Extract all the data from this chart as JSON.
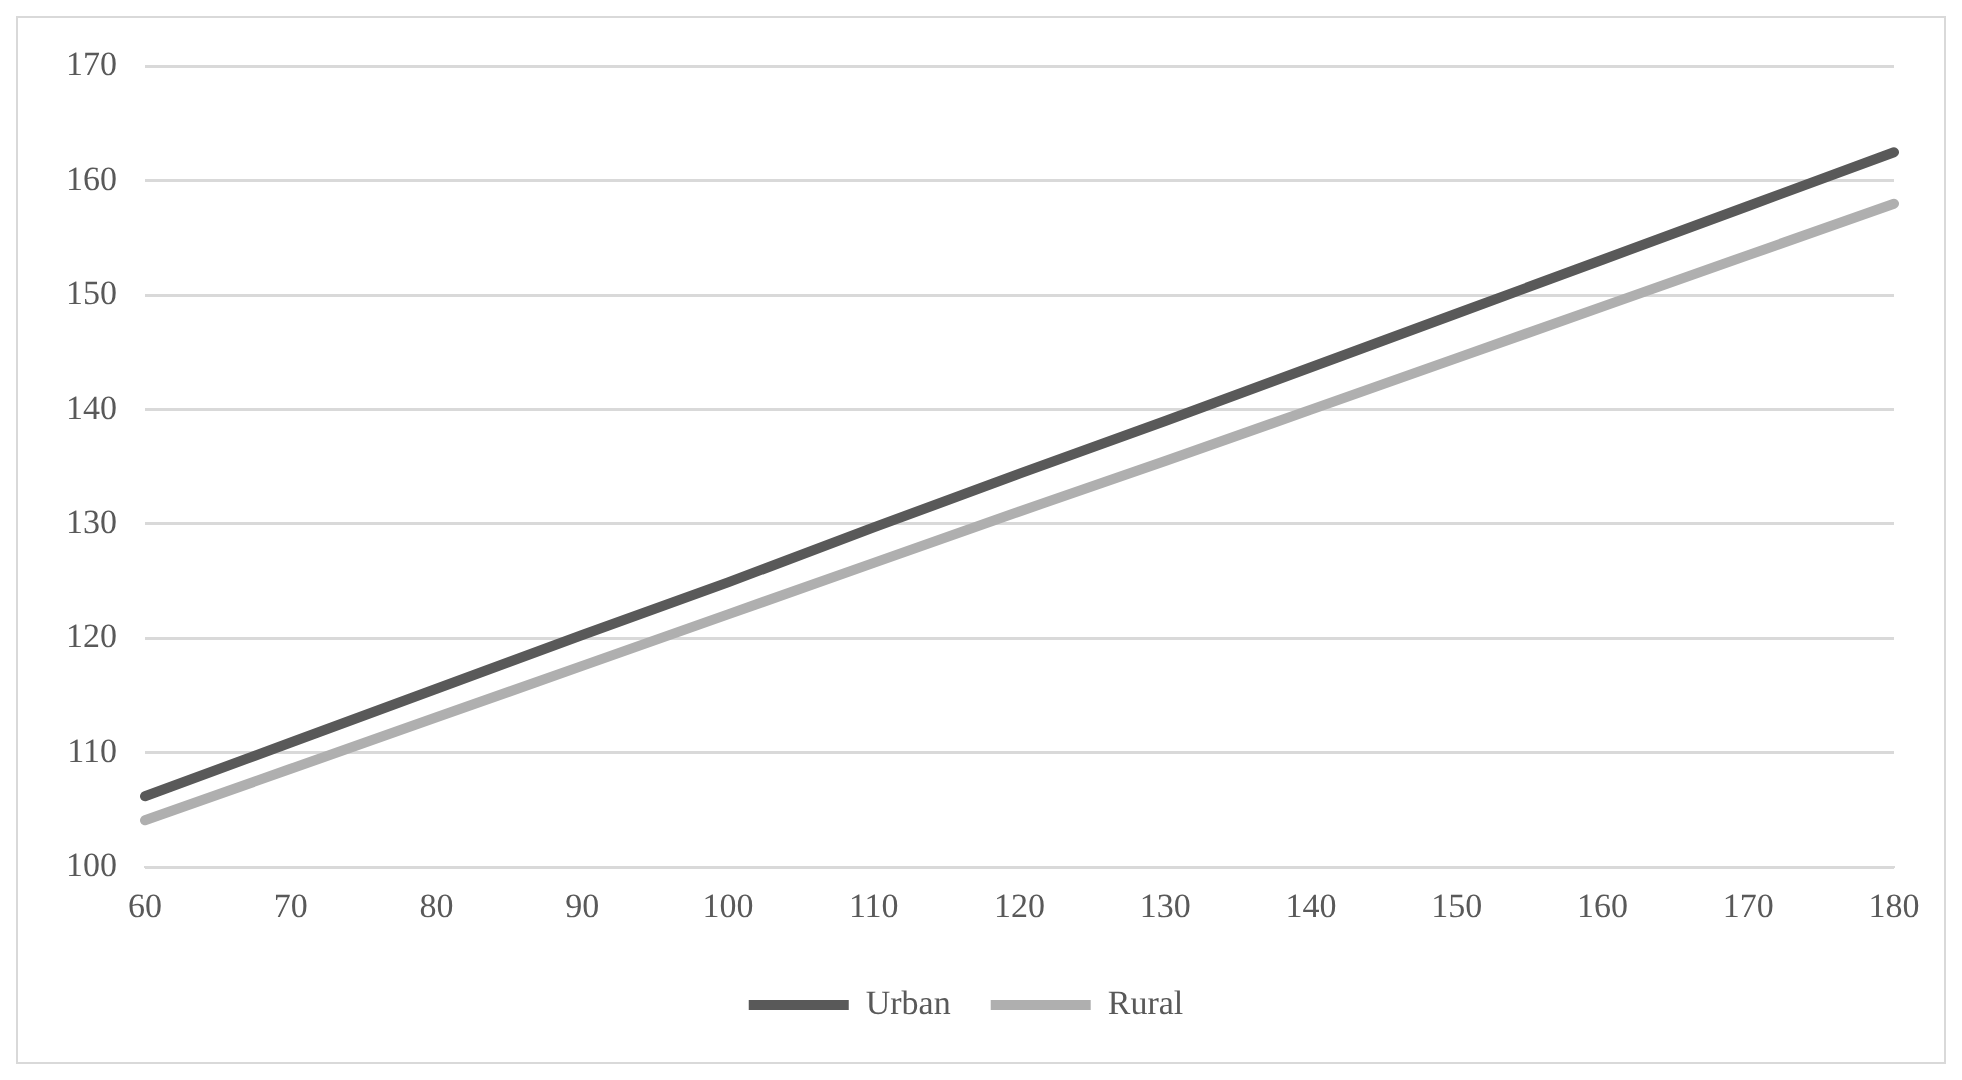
{
  "chart_data": {
    "type": "line",
    "categories": [
      "60",
      "70",
      "80",
      "90",
      "100",
      "110",
      "120",
      "130",
      "140",
      "150",
      "160",
      "170",
      "180"
    ],
    "ylim": [
      100,
      170
    ],
    "yticks": [
      100,
      110,
      120,
      130,
      140,
      150,
      160,
      170
    ],
    "grid": "y",
    "legend": "bottom",
    "marker": "none",
    "line_style": "solid",
    "series": [
      {
        "name": "Urban",
        "color": "#595959",
        "values": [
          106.2,
          110.9,
          115.6,
          120.3,
          124.9,
          129.7,
          134.4,
          139.0,
          143.7,
          148.4,
          153.1,
          157.8,
          162.5
        ]
      },
      {
        "name": "Rural",
        "color": "#afafaf",
        "values": [
          104.1,
          108.6,
          113.1,
          117.6,
          122.1,
          126.6,
          131.1,
          135.5,
          140.0,
          144.5,
          149.0,
          153.5,
          158.0
        ]
      }
    ]
  }
}
